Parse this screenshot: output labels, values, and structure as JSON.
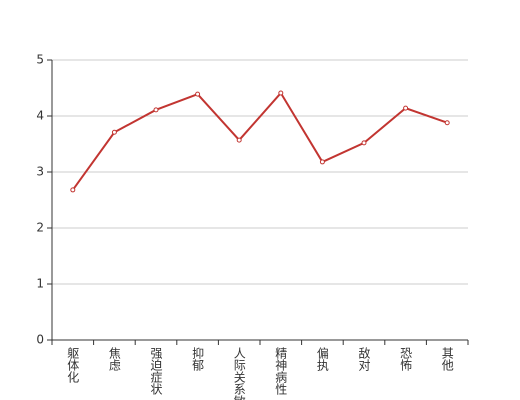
{
  "chart_data": {
    "type": "line",
    "categories": [
      "躯体化",
      "焦虑",
      "强迫症状",
      "抑郁",
      "人际关系敏感",
      "精神病性",
      "偏执",
      "敌对",
      "恐怖",
      "其他"
    ],
    "series": [
      {
        "color": "#c23531",
        "values": [
          2.68,
          3.71,
          4.11,
          4.39,
          3.57,
          4.41,
          3.18,
          3.52,
          4.14,
          3.88
        ]
      }
    ],
    "ylim": [
      0,
      5
    ],
    "yticks": [
      0,
      1,
      2,
      3,
      4,
      5
    ],
    "grid": true
  }
}
